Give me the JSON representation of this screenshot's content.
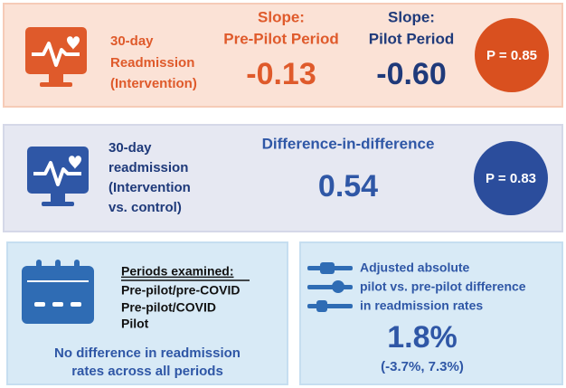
{
  "panels": [
    {
      "label": [
        "30-day",
        "Readmission",
        "(Intervention)"
      ],
      "slope_pre": {
        "title": [
          "Slope:",
          "Pre-Pilot Period"
        ],
        "value": "-0.13"
      },
      "slope_pilot": {
        "title": [
          "Slope:",
          "Pilot Period"
        ],
        "value": "-0.60"
      },
      "p_value": "P = 0.85"
    },
    {
      "label": [
        "30-day",
        "readmission",
        "(Intervention",
        "vs. control)"
      ],
      "metric": {
        "title": "Difference-in-difference",
        "value": "0.54"
      },
      "p_value": "P = 0.83"
    },
    {
      "heading": "Periods examined:",
      "periods": [
        "Pre-pilot/pre-COVID",
        "Pre-pilot/COVID",
        "Pilot"
      ],
      "conclusion": [
        "No difference in readmission",
        "rates across all periods"
      ]
    },
    {
      "label": [
        "Adjusted absolute",
        "pilot vs. pre-pilot difference",
        "in readmission rates"
      ],
      "value": "1.8%",
      "ci": "(-3.7%, 7.3%)"
    }
  ]
}
